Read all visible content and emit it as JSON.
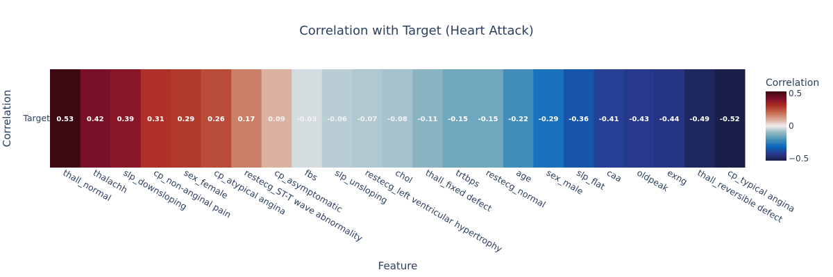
{
  "chart_data": {
    "type": "heatmap",
    "title": "Correlation with Target (Heart Attack)",
    "xlabel": "Feature",
    "ylabel": "Correlation",
    "y_categories": [
      "Target"
    ],
    "x_categories": [
      "thall_normal",
      "thalachh",
      "slp_downsloping",
      "cp_non-anginal pain",
      "sex_female",
      "cp_atypical angina",
      "restecg_ST-T wave abnormality",
      "cp_asymptomatic",
      "fbs",
      "slp_unsloping",
      "restecg_left ventricular hypertrophy",
      "chol",
      "thall_fixed defect",
      "trtbps",
      "restecg_normal",
      "age",
      "sex_male",
      "slp_flat",
      "caa",
      "oldpeak",
      "exng",
      "thall_reversible defect",
      "cp_typical angina"
    ],
    "values": [
      0.53,
      0.42,
      0.39,
      0.31,
      0.29,
      0.26,
      0.17,
      0.09,
      -0.03,
      -0.06,
      -0.07,
      -0.08,
      -0.11,
      -0.15,
      -0.15,
      -0.22,
      -0.29,
      -0.36,
      -0.41,
      -0.43,
      -0.44,
      -0.49,
      -0.52
    ],
    "value_labels": [
      "0.53",
      "0.42",
      "0.39",
      "0.31",
      "0.29",
      "0.26",
      "0.17",
      "0.09",
      "-0.03",
      "-0.06",
      "-0.07",
      "-0.08",
      "-0.11",
      "-0.15",
      "-0.15",
      "-0.22",
      "-0.29",
      "-0.36",
      "-0.41",
      "-0.43",
      "-0.44",
      "-0.49",
      "-0.52"
    ],
    "colorscale": "balance",
    "zrange": [
      -0.53,
      0.53
    ],
    "colorbar": {
      "title": "Correlation",
      "ticks": [
        0.5,
        0,
        -0.5
      ],
      "tick_labels": [
        "0.5",
        "0",
        "−0.5"
      ]
    }
  }
}
